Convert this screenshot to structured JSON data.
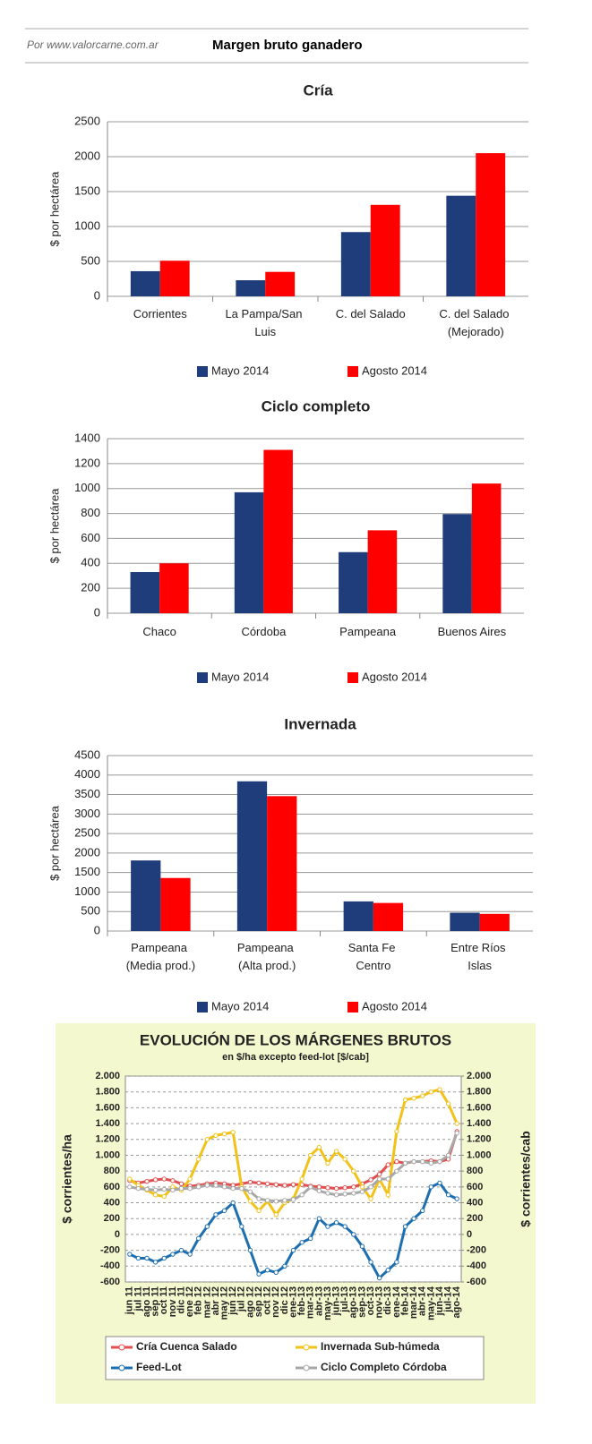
{
  "header": {
    "source": "Por www.valorcarne.com.ar",
    "title": "Margen bruto ganadero"
  },
  "chart_data": [
    {
      "type": "bar",
      "title": "Cría",
      "ylabel": "$ por hectárea",
      "categories": [
        "Corrientes",
        "La Pampa/San Luis",
        "C. del Salado",
        "C. del Salado (Mejorado)"
      ],
      "series": [
        {
          "name": "Mayo 2014",
          "color": "#1f3d7a",
          "values": [
            360,
            230,
            920,
            1440
          ]
        },
        {
          "name": "Agosto 2014",
          "color": "#ff0000",
          "values": [
            510,
            350,
            1310,
            2050
          ]
        }
      ],
      "ylim": [
        0,
        2500
      ],
      "yticks": [
        0,
        500,
        1000,
        1500,
        2000,
        2500
      ],
      "grid": true,
      "legend": "bottom"
    },
    {
      "type": "bar",
      "title": "Ciclo completo",
      "ylabel": "$ por hectárea",
      "categories": [
        "Chaco",
        "Córdoba",
        "Pampeana",
        "Buenos Aires"
      ],
      "series": [
        {
          "name": "Mayo 2014",
          "color": "#1f3d7a",
          "values": [
            330,
            970,
            490,
            795
          ]
        },
        {
          "name": "Agosto 2014",
          "color": "#ff0000",
          "values": [
            400,
            1310,
            665,
            1040
          ]
        }
      ],
      "ylim": [
        0,
        1400
      ],
      "yticks": [
        0,
        200,
        400,
        600,
        800,
        1000,
        1200,
        1400
      ],
      "grid": true,
      "legend": "bottom"
    },
    {
      "type": "bar",
      "title": "Invernada",
      "ylabel": "$ por hectárea",
      "categories": [
        "Pampeana (Media prod.)",
        "Pampeana (Alta prod.)",
        "Santa Fe Centro",
        "Entre Ríos Islas"
      ],
      "series": [
        {
          "name": "Mayo 2014",
          "color": "#1f3d7a",
          "values": [
            1810,
            3840,
            760,
            470
          ]
        },
        {
          "name": "Agosto 2014",
          "color": "#ff0000",
          "values": [
            1360,
            3460,
            720,
            440
          ]
        }
      ],
      "ylim": [
        0,
        4500
      ],
      "yticks": [
        0,
        500,
        1000,
        1500,
        2000,
        2500,
        3000,
        3500,
        4000,
        4500
      ],
      "grid": true,
      "legend": "bottom"
    },
    {
      "type": "line",
      "title": "EVOLUCIÓN DE LOS MÁRGENES BRUTOS",
      "subtitle": "en $/ha excepto feed-lot [$/cab]",
      "ylabel": "$ corrientes/ha",
      "y2label": "$ corrientes/cab",
      "categories": [
        "jun 11",
        "jul 11",
        "ago 11",
        "sep 11",
        "oct 11",
        "nov 11",
        "dic 11",
        "ene 12",
        "feb 12",
        "mar 12",
        "abr 12",
        "may 12",
        "jun 12",
        "jul 12",
        "ago 12",
        "sep 12",
        "oct 12",
        "nov 12",
        "dic 12",
        "ene-13",
        "feb-13",
        "mar-13",
        "abr-13",
        "may-13",
        "jun-13",
        "jul-13",
        "ago-13",
        "sep-13",
        "oct-13",
        "nov-13",
        "dic-13",
        "ene-14",
        "feb-14",
        "mar-14",
        "abr-14",
        "may-14",
        "jun-14",
        "jul-14",
        "ago-14"
      ],
      "series": [
        {
          "name": "Cría Cuenca Salado",
          "color": "#e05050",
          "values": [
            680,
            650,
            670,
            690,
            700,
            680,
            640,
            610,
            620,
            640,
            650,
            640,
            620,
            640,
            660,
            650,
            640,
            630,
            620,
            630,
            630,
            610,
            600,
            590,
            580,
            590,
            600,
            640,
            690,
            760,
            880,
            920,
            900,
            920,
            920,
            930,
            920,
            950,
            1300
          ]
        },
        {
          "name": "Invernada Sub-húmeda",
          "color": "#f2c21a",
          "values": [
            700,
            620,
            560,
            500,
            480,
            600,
            560,
            700,
            950,
            1200,
            1250,
            1270,
            1290,
            600,
            420,
            300,
            420,
            250,
            400,
            450,
            700,
            1000,
            1100,
            900,
            1050,
            950,
            800,
            600,
            450,
            700,
            500,
            1300,
            1700,
            1720,
            1750,
            1800,
            1830,
            1650,
            1400
          ]
        },
        {
          "name": "Feed-Lot",
          "color": "#1e6fb0",
          "axis": "y2",
          "values": [
            -250,
            -300,
            -300,
            -350,
            -300,
            -250,
            -200,
            -250,
            -50,
            100,
            250,
            300,
            400,
            100,
            -200,
            -500,
            -450,
            -480,
            -400,
            -200,
            -100,
            -50,
            200,
            100,
            150,
            100,
            0,
            -150,
            -350,
            -550,
            -450,
            -350,
            100,
            200,
            300,
            600,
            650,
            500,
            450
          ]
        },
        {
          "name": "Ciclo Completo Córdoba",
          "color": "#a8a8a8",
          "values": [
            600,
            580,
            570,
            560,
            570,
            560,
            580,
            580,
            600,
            620,
            620,
            600,
            580,
            580,
            540,
            450,
            430,
            420,
            430,
            440,
            500,
            600,
            550,
            520,
            500,
            510,
            520,
            540,
            600,
            700,
            700,
            800,
            900,
            920,
            920,
            900,
            920,
            1000,
            1280
          ]
        }
      ],
      "ylim": [
        -600,
        2000
      ],
      "yticks": [
        -600,
        -400,
        -200,
        0,
        200,
        400,
        600,
        800,
        {
          "value": 1000,
          "label": "1.000"
        },
        {
          "value": 1200,
          "label": "1.200"
        },
        {
          "value": 1400,
          "label": "1.400"
        },
        {
          "value": 1600,
          "label": "1.600"
        },
        {
          "value": 1800,
          "label": "1.800"
        },
        {
          "value": 2000,
          "label": "2.000"
        }
      ],
      "y2lim": [
        -600,
        2000
      ],
      "y2ticks": [
        -600,
        -400,
        -200,
        0,
        200,
        400,
        600,
        800,
        {
          "value": 1000,
          "label": "1.000"
        },
        {
          "value": 1200,
          "label": "1.200"
        },
        {
          "value": 1400,
          "label": "1.400"
        },
        {
          "value": 1600,
          "label": "1.600"
        },
        {
          "value": 1800,
          "label": "1.800"
        },
        {
          "value": 2000,
          "label": "2.000"
        }
      ],
      "grid": true,
      "legend": "bottom"
    }
  ]
}
